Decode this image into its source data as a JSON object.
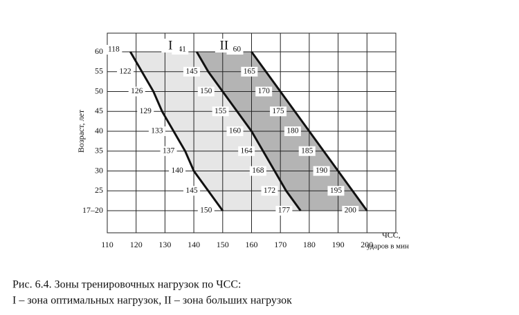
{
  "chart_data": {
    "type": "line",
    "ylabel": "Возраст, лет",
    "xlabel": [
      "ЧСС,",
      "ударов в мин"
    ],
    "caption": [
      "Рис. 6.4. Зоны тренировочных нагрузок по ЧСС:",
      "I – зона оптимальных нагрузок, II – зона больших нагрузок"
    ],
    "zones": [
      {
        "label": "I",
        "color": "#e6e6e6"
      },
      {
        "label": "II",
        "color": "#b4b4b4"
      }
    ],
    "categories": [
      "17–20",
      "25",
      "30",
      "35",
      "40",
      "45",
      "50",
      "55",
      "60"
    ],
    "series": [
      {
        "color": "#111",
        "values": [
          150,
          145,
          140,
          137,
          133,
          129,
          126,
          122,
          118
        ]
      },
      {
        "color": "#111",
        "values": [
          177,
          172,
          168,
          164,
          160,
          155,
          150,
          145,
          141
        ]
      },
      {
        "color": "#111",
        "values": [
          200,
          195,
          190,
          185,
          180,
          175,
          170,
          165,
          160
        ]
      }
    ],
    "xlim": [
      110,
      210
    ],
    "xticks": [
      110,
      120,
      130,
      140,
      150,
      160,
      170,
      180,
      190,
      200
    ],
    "grid": true
  }
}
